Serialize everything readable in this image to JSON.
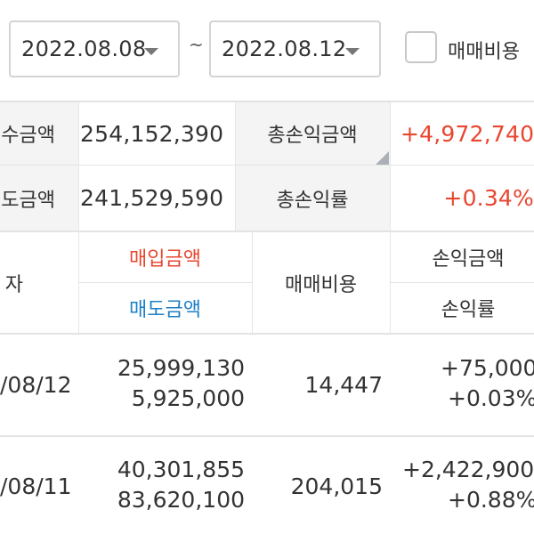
{
  "filter": {
    "start_date": "2022.08.08",
    "separator": "~",
    "end_date": "2022.08.12",
    "fee_checkbox_label": "매매비용"
  },
  "summary": {
    "buy_amount_label": "수금액",
    "buy_amount": "254,152,390",
    "sell_amount_label": "도금액",
    "sell_amount": "241,529,590",
    "total_profit_label": "총손익금액",
    "total_profit": "+4,972,740",
    "total_rate_label": "총손익률",
    "total_rate": "+0.34%"
  },
  "table": {
    "headers": {
      "date": "자",
      "buy_amount": "매입금액",
      "sell_amount": "매도금액",
      "fee": "매매비용",
      "profit": "손익금액",
      "rate": "손익률"
    },
    "rows": [
      {
        "date": "/08/12",
        "buy": "25,999,130",
        "sell": "5,925,000",
        "fee": "14,447",
        "profit": "+75,000",
        "rate": "+0.03%"
      },
      {
        "date": "/08/11",
        "buy": "40,301,855",
        "sell": "83,620,100",
        "fee": "204,015",
        "profit": "+2,422,900",
        "rate": "+0.88%"
      }
    ]
  },
  "colors": {
    "positive": "#e8462f",
    "buy": "#e8462f",
    "sell": "#1d7fc7"
  }
}
